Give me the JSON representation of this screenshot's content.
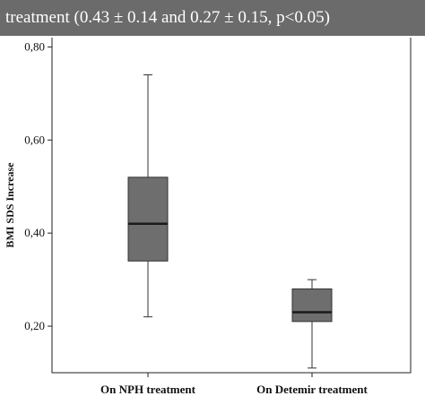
{
  "header": {
    "caption": "treatment  (0.43 ± 0.14 and 0.27 ± 0.15, p<0.05)"
  },
  "colors": {
    "header_bg": "#6b6b6b",
    "box_fill": "#6e6e6e",
    "median_line": "#1a1a1a"
  },
  "chart_data": {
    "type": "boxplot",
    "ylabel": "BMI SDS Increase",
    "ylim": [
      0.1,
      0.82
    ],
    "yticks": [
      0.2,
      0.4,
      0.6,
      0.8
    ],
    "ytick_labels": [
      "0,20",
      "0,40",
      "0,60",
      "0,80"
    ],
    "categories": [
      "On NPH treatment",
      "On Detemir treatment"
    ],
    "boxes": [
      {
        "min": 0.22,
        "q1": 0.34,
        "median": 0.42,
        "q3": 0.52,
        "max": 0.74
      },
      {
        "min": 0.11,
        "q1": 0.21,
        "median": 0.23,
        "q3": 0.28,
        "max": 0.3
      }
    ],
    "grid": false
  }
}
